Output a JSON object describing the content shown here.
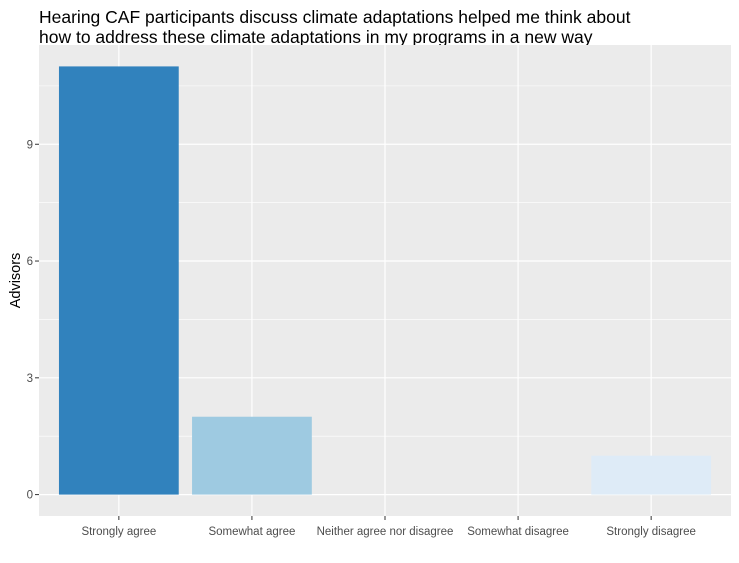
{
  "chart_data": {
    "type": "bar",
    "title": "Hearing CAF participants discuss climate adaptations helped me think about\nhow to address these climate adaptations in my programs in a new way",
    "xlabel": "",
    "ylabel": "Advisors",
    "categories": [
      "Strongly agree",
      "Somewhat agree",
      "Neither agree nor disagree",
      "Somewhat disagree",
      "Strongly disagree"
    ],
    "values": [
      11,
      2,
      0,
      0,
      1
    ],
    "bar_colors": [
      "#3182bd",
      "#9ecae1",
      "#c6dbef",
      "#deebf7",
      "#deebf7"
    ],
    "ylim": [
      -0.55,
      11.55
    ],
    "yticks": [
      0,
      3,
      6,
      9
    ],
    "grid": true,
    "panel_background": "#ebebeb",
    "grid_color": "#ffffff"
  }
}
